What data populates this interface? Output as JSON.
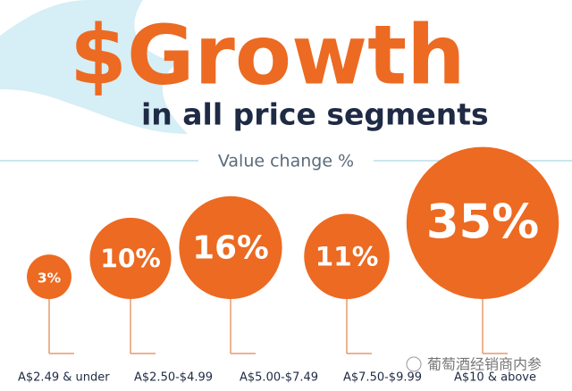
{
  "chart_data": {
    "type": "bubble",
    "title": "$Growth",
    "subtitle": "in all price segments",
    "value_axis_label": "Value change %",
    "categories": [
      "A$2.49 & under",
      "A$2.50-$4.99",
      "A$5.00-$7.49",
      "A$7.50-$9.99",
      "A$10 & above"
    ],
    "values": [
      3,
      10,
      16,
      11,
      35
    ],
    "value_labels": [
      "3%",
      "10%",
      "16%",
      "11%",
      "35%"
    ],
    "color": "#ec6a22",
    "watermark": "葡萄酒经销商内参"
  }
}
